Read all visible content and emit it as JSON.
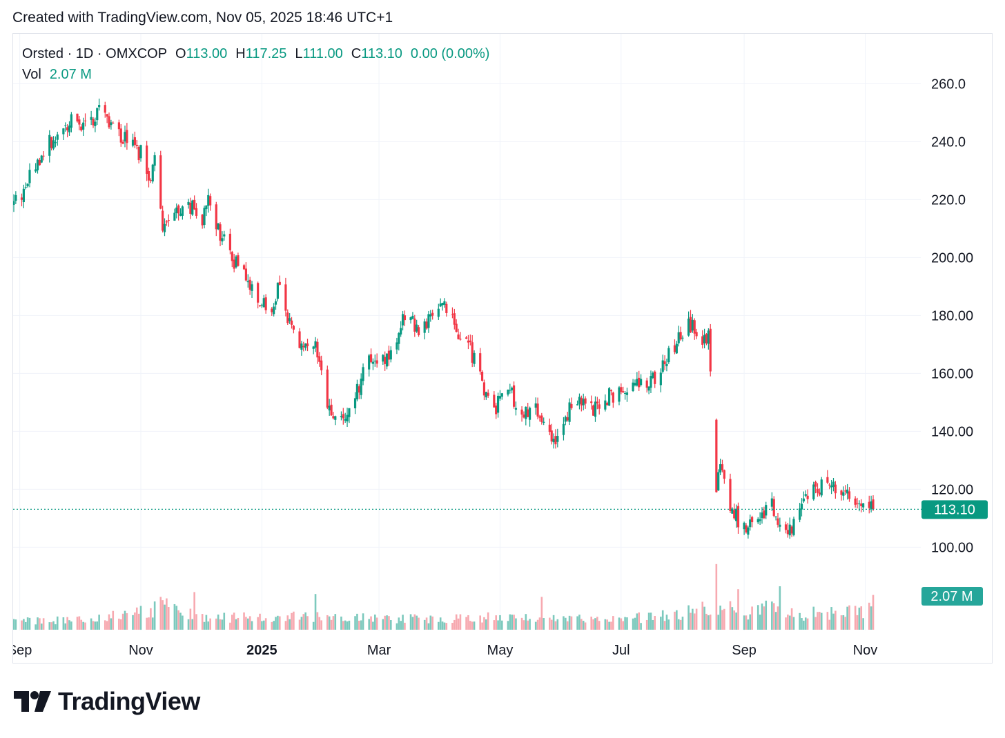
{
  "header": {
    "created_text": "Created with TradingView.com, Nov 05, 2025 18:46 UTC+1"
  },
  "legend": {
    "symbol": "Orsted · 1D · OMXCOP",
    "open_label": "O",
    "open_value": "113.00",
    "high_label": "H",
    "high_value": "117.25",
    "low_label": "L",
    "low_value": "111.00",
    "close_label": "C",
    "close_value": "113.10",
    "change": "0.00 (0.00%)",
    "vol_label": "Vol",
    "vol_value": "2.07 M"
  },
  "price_tag": "113.10",
  "volume_tag": "2.07 M",
  "logo": {
    "text": "TradingView",
    "icon": "tradingview-logo-icon"
  },
  "colors": {
    "up": "#089981",
    "down": "#f23645",
    "vol_up": "#7cc9bd",
    "vol_down": "#f7a9b0",
    "grid": "#f0f3fa",
    "text": "#131722"
  },
  "chart_data": {
    "type": "candlestick",
    "y_ticks": [
      "260.0",
      "240.0",
      "220.0",
      "200.00",
      "180.00",
      "160.00",
      "140.00",
      "120.00",
      "100.00"
    ],
    "ylim": [
      92,
      262
    ],
    "x_ticks": [
      {
        "label": "Sep",
        "bold": false,
        "date": "2024-09-01"
      },
      {
        "label": "Nov",
        "bold": false,
        "date": "2024-11-01"
      },
      {
        "label": "2025",
        "bold": true,
        "date": "2025-01-01"
      },
      {
        "label": "Mar",
        "bold": false,
        "date": "2025-03-01"
      },
      {
        "label": "May",
        "bold": false,
        "date": "2025-05-01"
      },
      {
        "label": "Jul",
        "bold": false,
        "date": "2025-07-01"
      },
      {
        "label": "Sep",
        "bold": false,
        "date": "2025-09-01"
      },
      {
        "label": "Nov",
        "bold": false,
        "date": "2025-11-01"
      }
    ],
    "xlim": [
      "2024-08-29",
      "2025-11-05"
    ],
    "last_close": 113.1,
    "last_volume": "2.07 M",
    "price_path": [
      [
        "2024-08-29",
        218
      ],
      [
        "2024-09-05",
        226
      ],
      [
        "2024-09-12",
        236
      ],
      [
        "2024-09-20",
        243
      ],
      [
        "2024-09-27",
        248
      ],
      [
        "2024-10-04",
        246
      ],
      [
        "2024-10-11",
        250
      ],
      [
        "2024-10-18",
        244
      ],
      [
        "2024-10-25",
        240
      ],
      [
        "2024-11-01",
        236
      ],
      [
        "2024-11-05",
        226
      ],
      [
        "2024-11-08",
        234
      ],
      [
        "2024-11-12",
        208
      ],
      [
        "2024-11-18",
        214
      ],
      [
        "2024-11-25",
        218
      ],
      [
        "2024-12-02",
        214
      ],
      [
        "2024-12-05",
        219
      ],
      [
        "2024-12-10",
        210
      ],
      [
        "2024-12-17",
        200
      ],
      [
        "2024-12-24",
        194
      ],
      [
        "2024-12-31",
        186
      ],
      [
        "2025-01-07",
        183
      ],
      [
        "2025-01-10",
        192
      ],
      [
        "2025-01-14",
        178
      ],
      [
        "2025-01-21",
        168
      ],
      [
        "2025-01-28",
        172
      ],
      [
        "2025-02-03",
        148
      ],
      [
        "2025-02-10",
        144
      ],
      [
        "2025-02-17",
        152
      ],
      [
        "2025-02-24",
        166
      ],
      [
        "2025-03-03",
        164
      ],
      [
        "2025-03-10",
        170
      ],
      [
        "2025-03-14",
        180
      ],
      [
        "2025-03-21",
        176
      ],
      [
        "2025-03-28",
        180
      ],
      [
        "2025-04-04",
        183
      ],
      [
        "2025-04-10",
        174
      ],
      [
        "2025-04-16",
        168
      ],
      [
        "2025-04-23",
        155
      ],
      [
        "2025-04-28",
        147
      ],
      [
        "2025-05-05",
        155
      ],
      [
        "2025-05-12",
        146
      ],
      [
        "2025-05-19",
        148
      ],
      [
        "2025-05-26",
        140
      ],
      [
        "2025-05-30",
        136
      ],
      [
        "2025-06-03",
        146
      ],
      [
        "2025-06-10",
        150
      ],
      [
        "2025-06-17",
        148
      ],
      [
        "2025-06-24",
        152
      ],
      [
        "2025-07-01",
        154
      ],
      [
        "2025-07-08",
        158
      ],
      [
        "2025-07-15",
        155
      ],
      [
        "2025-07-22",
        164
      ],
      [
        "2025-07-29",
        170
      ],
      [
        "2025-08-04",
        178
      ],
      [
        "2025-08-11",
        172
      ],
      [
        "2025-08-14",
        173
      ],
      [
        "2025-08-18",
        130
      ],
      [
        "2025-08-25",
        115
      ],
      [
        "2025-09-01",
        106
      ],
      [
        "2025-09-08",
        112
      ],
      [
        "2025-09-15",
        114
      ],
      [
        "2025-09-22",
        104
      ],
      [
        "2025-09-26",
        108
      ],
      [
        "2025-10-01",
        118
      ],
      [
        "2025-10-08",
        120
      ],
      [
        "2025-10-15",
        122
      ],
      [
        "2025-10-22",
        118
      ],
      [
        "2025-10-29",
        116
      ],
      [
        "2025-11-05",
        113
      ]
    ],
    "gaps": [
      [
        "2025-08-15",
        "2025-08-18"
      ]
    ],
    "volume_path": [
      [
        "2024-08-29",
        0.9
      ],
      [
        "2024-10-01",
        1.0
      ],
      [
        "2024-11-13",
        2.4
      ],
      [
        "2024-12-01",
        1.2
      ],
      [
        "2025-01-20",
        1.4
      ],
      [
        "2025-03-10",
        1.1
      ],
      [
        "2025-05-01",
        1.3
      ],
      [
        "2025-07-01",
        1.0
      ],
      [
        "2025-08-19",
        2.3
      ],
      [
        "2025-09-01",
        1.8
      ],
      [
        "2025-09-10",
        2.2
      ],
      [
        "2025-10-01",
        1.6
      ],
      [
        "2025-11-05",
        2.07
      ]
    ],
    "volume_spikes": [
      [
        "2024-11-11",
        3.4
      ],
      [
        "2024-11-28",
        3.9
      ],
      [
        "2025-01-28",
        3.7
      ],
      [
        "2025-05-22",
        3.4
      ],
      [
        "2025-08-18",
        6.8
      ],
      [
        "2025-08-29",
        4.2
      ],
      [
        "2025-09-19",
        4.5
      ]
    ]
  }
}
